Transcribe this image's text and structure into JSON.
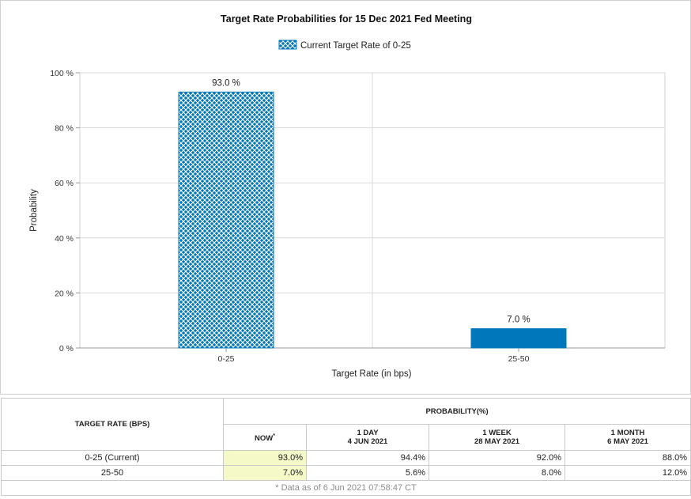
{
  "chart_data": {
    "type": "bar",
    "title": "Target Rate Probabilities for 15 Dec 2021 Fed Meeting",
    "legend": {
      "label": "Current Target Rate of 0-25",
      "placement": "top-center"
    },
    "categories": [
      "0-25",
      "25-50"
    ],
    "values": [
      93.0,
      7.0
    ],
    "data_labels": [
      "93.0 %",
      "7.0 %"
    ],
    "bar_styles": [
      "hatched",
      "solid"
    ],
    "xlabel": "Target Rate (in bps)",
    "ylabel": "Probability",
    "ylim": [
      0,
      100
    ],
    "yticks": [
      {
        "value": 0,
        "label": "0 %"
      },
      {
        "value": 20,
        "label": "20 %"
      },
      {
        "value": 40,
        "label": "40 %"
      },
      {
        "value": 60,
        "label": "60 %"
      },
      {
        "value": 80,
        "label": "80 %"
      },
      {
        "value": 100,
        "label": "100 %"
      }
    ],
    "grid": true,
    "colors": {
      "bar": "#0077bb",
      "hatch": "#ffffff",
      "grid": "#d9d9d9"
    }
  },
  "table": {
    "target_header": "TARGET RATE (BPS)",
    "probability_header": "PROBABILITY(%)",
    "columns": [
      {
        "line1": "NOW",
        "line2": "",
        "marker": "*"
      },
      {
        "line1": "1 DAY",
        "line2": "4 JUN 2021",
        "marker": ""
      },
      {
        "line1": "1 WEEK",
        "line2": "28 MAY 2021",
        "marker": ""
      },
      {
        "line1": "1 MONTH",
        "line2": "6 MAY 2021",
        "marker": ""
      }
    ],
    "rows": [
      {
        "label": "0-25 (Current)",
        "values": [
          "93.0%",
          "94.4%",
          "92.0%",
          "88.0%"
        ]
      },
      {
        "label": "25-50",
        "values": [
          "7.0%",
          "5.6%",
          "8.0%",
          "12.0%"
        ]
      }
    ],
    "footnote": "* Data as of 6 Jun 2021 07:58:47 CT",
    "now_color": "#f5f9c8"
  }
}
